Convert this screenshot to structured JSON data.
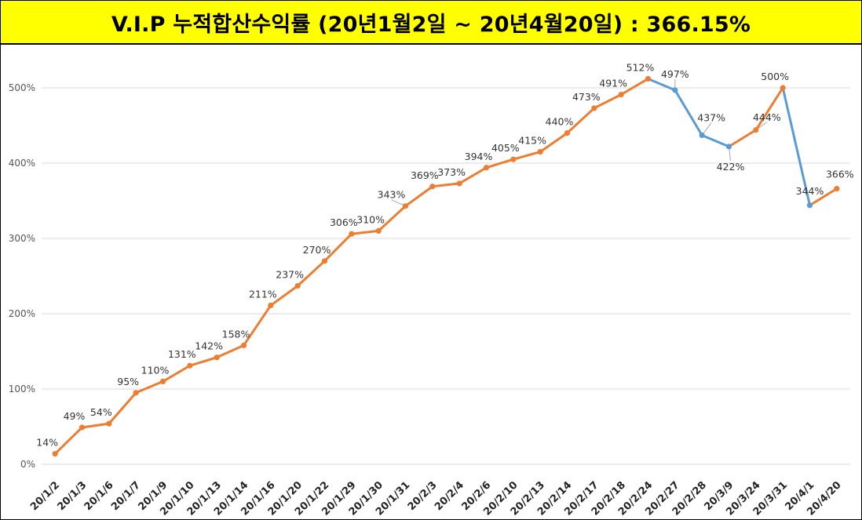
{
  "title": "V.I.P 누적합산수익률 (20년1월2일 ~ 20년4월20일) : 366.15%",
  "colors": {
    "up": "#ed7d31",
    "down": "#5b9bd5",
    "grid": "#d9d9d9",
    "title_bg": "#ffff00"
  },
  "chart_data": {
    "type": "line",
    "title": "V.I.P 누적합산수익률 (20년1월2일 ~ 20년4월20일) : 366.15%",
    "xlabel": "",
    "ylabel": "",
    "ylim": [
      0,
      5.4
    ],
    "yticks": [
      0,
      1,
      2,
      3,
      4,
      5
    ],
    "ytick_labels": [
      "0%",
      "100%",
      "200%",
      "300%",
      "400%",
      "500%"
    ],
    "grid": true,
    "legend": "none",
    "categories": [
      "20/1/2",
      "20/1/3",
      "20/1/6",
      "20/1/7",
      "20/1/9",
      "20/1/10",
      "20/1/13",
      "20/1/14",
      "20/1/16",
      "20/1/20",
      "20/1/22",
      "20/1/29",
      "20/1/30",
      "20/1/31",
      "20/2/3",
      "20/2/4",
      "20/2/6",
      "20/2/10",
      "20/2/13",
      "20/2/14",
      "20/2/17",
      "20/2/18",
      "20/2/24",
      "20/2/27",
      "20/2/28",
      "20/3/9",
      "20/3/24",
      "20/3/31",
      "20/4/1",
      "20/4/20"
    ],
    "values": [
      0.14,
      0.49,
      0.54,
      0.95,
      1.1,
      1.31,
      1.42,
      1.58,
      2.11,
      2.37,
      2.7,
      3.06,
      3.1,
      3.43,
      3.69,
      3.73,
      3.94,
      4.05,
      4.15,
      4.4,
      4.73,
      4.91,
      5.12,
      4.97,
      4.37,
      4.22,
      4.44,
      5.0,
      3.44,
      3.66
    ],
    "data_labels": [
      "14%",
      "49%",
      "54%",
      "95%",
      "110%",
      "131%",
      "142%",
      "158%",
      "211%",
      "237%",
      "270%",
      "306%",
      "310%",
      "343%",
      "369%",
      "373%",
      "394%",
      "405%",
      "415%",
      "440%",
      "473%",
      "491%",
      "512%",
      "497%",
      "437%",
      "422%",
      "444%",
      "500%",
      "344%",
      "366%"
    ]
  }
}
